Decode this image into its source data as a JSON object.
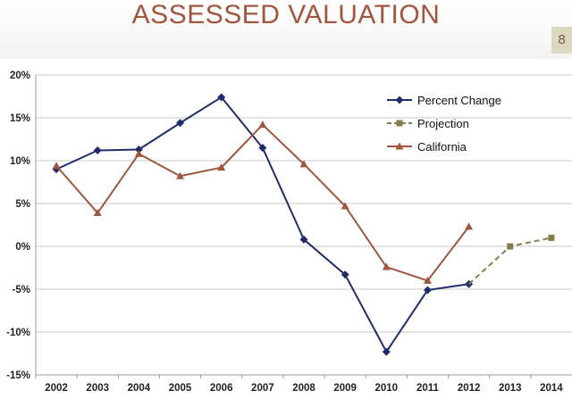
{
  "slide": {
    "title": "ASSESSED VALUATION",
    "page_number": "8"
  },
  "chart_data": {
    "type": "line",
    "title": "",
    "xlabel": "",
    "ylabel": "",
    "x": [
      2002,
      2003,
      2004,
      2005,
      2006,
      2007,
      2008,
      2009,
      2010,
      2011,
      2012,
      2013,
      2014
    ],
    "x_tick_labels": [
      "2002",
      "2003",
      "2004",
      "2005",
      "2006",
      "2007",
      "2008",
      "2009",
      "2010",
      "2011",
      "2012",
      "2013",
      "2014"
    ],
    "ylim": [
      -15,
      20
    ],
    "y_ticks": [
      -15,
      -10,
      -5,
      0,
      5,
      10,
      15,
      20
    ],
    "y_tick_labels": [
      "-15%",
      "-10%",
      "-5%",
      "0%",
      "5%",
      "10%",
      "15%",
      "20%"
    ],
    "grid": "horizontal",
    "legend_position": "top-right",
    "series": [
      {
        "name": "Percent Change",
        "color": "#1f2d6b",
        "marker": "diamond",
        "line_style": "solid",
        "x": [
          2002,
          2003,
          2004,
          2005,
          2006,
          2007,
          2008,
          2009,
          2010,
          2011,
          2012
        ],
        "values": [
          9.0,
          11.2,
          11.3,
          14.4,
          17.4,
          11.5,
          0.8,
          -3.3,
          -12.3,
          -5.1,
          -4.4
        ]
      },
      {
        "name": "Projection",
        "color": "#857c4c",
        "marker": "square",
        "line_style": "dashed",
        "x": [
          2012,
          2013,
          2014
        ],
        "values": [
          -4.4,
          0.0,
          1.0
        ]
      },
      {
        "name": "California",
        "color": "#a0553f",
        "marker": "triangle",
        "line_style": "solid",
        "x": [
          2002,
          2003,
          2004,
          2005,
          2006,
          2007,
          2008,
          2009,
          2010,
          2011,
          2012
        ],
        "values": [
          9.4,
          3.9,
          10.8,
          8.2,
          9.2,
          14.2,
          9.6,
          4.7,
          -2.4,
          -4.0,
          2.3
        ]
      }
    ]
  }
}
